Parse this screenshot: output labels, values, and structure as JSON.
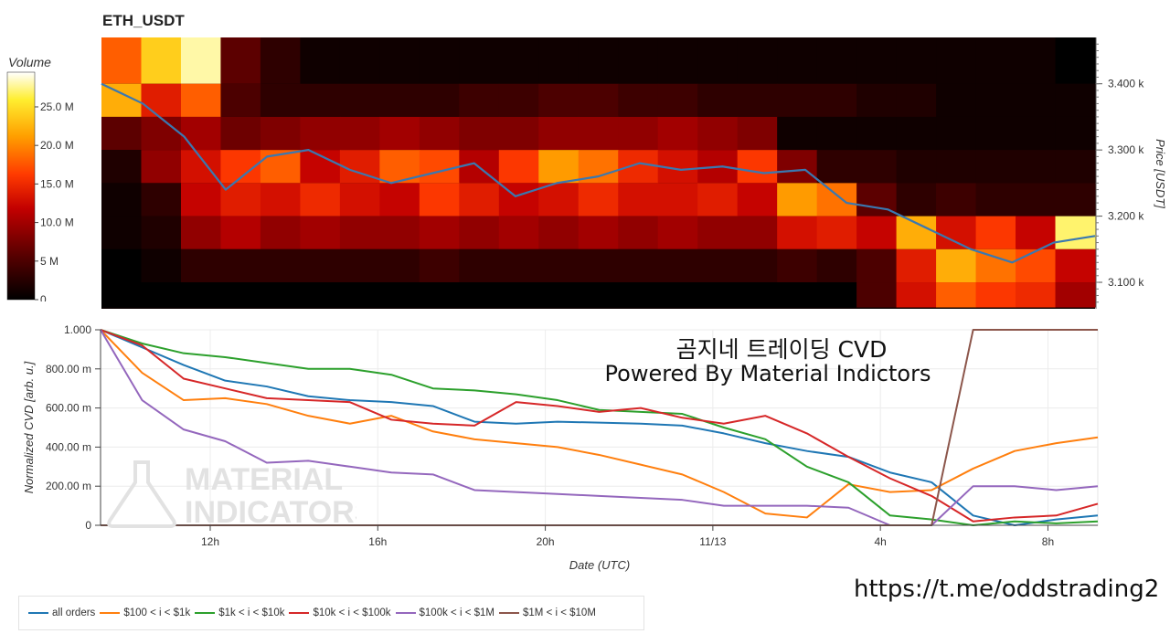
{
  "header": {
    "title": "ETH_USDT"
  },
  "colorbar": {
    "title": "Volume",
    "ticks": [
      {
        "label": "25.0 M",
        "value": 25
      },
      {
        "label": "20.0 M",
        "value": 20
      },
      {
        "label": "15.0 M",
        "value": 15
      },
      {
        "label": "10.0 M",
        "value": 10
      },
      {
        "label": "5 M",
        "value": 5
      },
      {
        "label": "0",
        "value": 0
      }
    ],
    "max": 29.5
  },
  "overlay": {
    "line1": "곰지네 트레이딩 CVD",
    "line2": "Powered By Material Indictors"
  },
  "watermark": {
    "line1": "MATERIAL",
    "line2": "INDICATORS"
  },
  "link_text": "https://t.me/oddstrading2",
  "colors": {
    "all": "#1f77b4",
    "s100": "#ff7f0e",
    "s1k": "#2ca02c",
    "s10k": "#d62728",
    "s100k": "#9467bd",
    "s1m": "#8c564b",
    "price": "#3a78b0"
  },
  "chart_data": [
    {
      "type": "heatmap",
      "title": "ETH_USDT",
      "ylabel": "Price [USDT]",
      "ylim": [
        3060,
        3470
      ],
      "y_ticks": [
        {
          "label": "3.100 k",
          "value": 3100
        },
        {
          "label": "3.200 k",
          "value": 3200
        },
        {
          "label": "3.300 k",
          "value": 3300
        },
        {
          "label": "3.400 k",
          "value": 3400
        }
      ],
      "price_bands": [
        3450,
        3400,
        3350,
        3300,
        3250,
        3200,
        3150,
        3100,
        3062
      ],
      "volume_by_band_over_time": [
        [
          18,
          24,
          28,
          6,
          3,
          1,
          1,
          1,
          1,
          1,
          1,
          1,
          1,
          1,
          1,
          1,
          1,
          1,
          1,
          1,
          1,
          1,
          1,
          1,
          0
        ],
        [
          22,
          14,
          18,
          5,
          3,
          3,
          3,
          3,
          3,
          4,
          4,
          5,
          5,
          4,
          4,
          3,
          3,
          3,
          3,
          2,
          2,
          1,
          1,
          1,
          1
        ],
        [
          6,
          8,
          10,
          7,
          8,
          9,
          9,
          10,
          9,
          8,
          8,
          9,
          9,
          9,
          10,
          9,
          8,
          1,
          1,
          1,
          1,
          1,
          1,
          1,
          1
        ],
        [
          2,
          9,
          13,
          16,
          18,
          12,
          14,
          18,
          17,
          11,
          16,
          21,
          19,
          15,
          13,
          11,
          16,
          8,
          3,
          3,
          2,
          2,
          2,
          2,
          2
        ],
        [
          1,
          3,
          12,
          14,
          13,
          15,
          13,
          12,
          16,
          14,
          12,
          13,
          15,
          13,
          13,
          14,
          12,
          21,
          19,
          6,
          3,
          4,
          3,
          3,
          3
        ],
        [
          1,
          2,
          9,
          11,
          9,
          10,
          9,
          9,
          10,
          9,
          10,
          9,
          10,
          9,
          10,
          9,
          9,
          13,
          14,
          12,
          22,
          13,
          16,
          12,
          27
        ],
        [
          0,
          1,
          3,
          3,
          3,
          3,
          3,
          3,
          4,
          3,
          3,
          3,
          3,
          3,
          3,
          3,
          3,
          4,
          3,
          5,
          14,
          22,
          19,
          17,
          12
        ],
        [
          0,
          0,
          0,
          0,
          0,
          0,
          0,
          0,
          0,
          0,
          0,
          0,
          0,
          0,
          0,
          0,
          0,
          0,
          0,
          5,
          13,
          18,
          16,
          15,
          10
        ]
      ],
      "price_line": [
        3400,
        3370,
        3320,
        3240,
        3290,
        3300,
        3270,
        3250,
        3265,
        3280,
        3230,
        3250,
        3260,
        3280,
        3270,
        3275,
        3265,
        3270,
        3220,
        3210,
        3180,
        3150,
        3130,
        3160,
        3170
      ]
    },
    {
      "type": "line",
      "xlabel": "Date (UTC)",
      "ylabel": "Normalized CVD [arb. u.]",
      "ylim": [
        0,
        1000
      ],
      "x_ticks": [
        "12h",
        "16h",
        "20h",
        "11/13",
        "4h",
        "8h"
      ],
      "y_ticks": [
        "0",
        "200.00 m",
        "400.00 m",
        "600.00 m",
        "800.00 m",
        "1.000"
      ],
      "x": [
        0,
        1,
        2,
        3,
        4,
        5,
        6,
        7,
        8,
        9,
        10,
        11,
        12,
        13,
        14,
        15,
        16,
        17,
        18,
        19,
        20,
        21,
        22,
        23,
        24
      ],
      "series": [
        {
          "name": "all orders",
          "key": "all",
          "values": [
            1000,
            910,
            820,
            740,
            710,
            660,
            640,
            630,
            610,
            530,
            520,
            530,
            525,
            520,
            510,
            470,
            420,
            380,
            350,
            270,
            220,
            50,
            0,
            30,
            50
          ]
        },
        {
          "name": "$100 < i < $1k",
          "key": "s100",
          "values": [
            1000,
            780,
            640,
            650,
            620,
            560,
            520,
            560,
            480,
            440,
            420,
            400,
            360,
            310,
            260,
            170,
            60,
            40,
            210,
            170,
            180,
            290,
            380,
            420,
            450
          ]
        },
        {
          "name": "$1k < i < $10k",
          "key": "s1k",
          "values": [
            1000,
            930,
            880,
            860,
            830,
            800,
            800,
            770,
            700,
            690,
            670,
            640,
            590,
            580,
            570,
            500,
            440,
            300,
            220,
            50,
            30,
            0,
            20,
            10,
            20
          ]
        },
        {
          "name": "$10k < i < $100k",
          "key": "s10k",
          "values": [
            1000,
            920,
            750,
            700,
            650,
            640,
            630,
            540,
            520,
            510,
            630,
            610,
            580,
            600,
            550,
            520,
            560,
            470,
            350,
            240,
            150,
            20,
            40,
            50,
            110
          ]
        },
        {
          "name": "$100k < i < $1M",
          "key": "s100k",
          "values": [
            1000,
            640,
            490,
            430,
            320,
            330,
            300,
            270,
            260,
            180,
            170,
            160,
            150,
            140,
            130,
            100,
            100,
            100,
            90,
            0,
            0,
            200,
            200,
            180,
            200
          ]
        },
        {
          "name": "$1M < i < $10M",
          "key": "s1m",
          "values": [
            0,
            0,
            0,
            0,
            0,
            0,
            0,
            0,
            0,
            0,
            0,
            0,
            0,
            0,
            0,
            0,
            0,
            0,
            0,
            0,
            0,
            1000,
            1000,
            1000,
            1000
          ]
        }
      ]
    }
  ]
}
